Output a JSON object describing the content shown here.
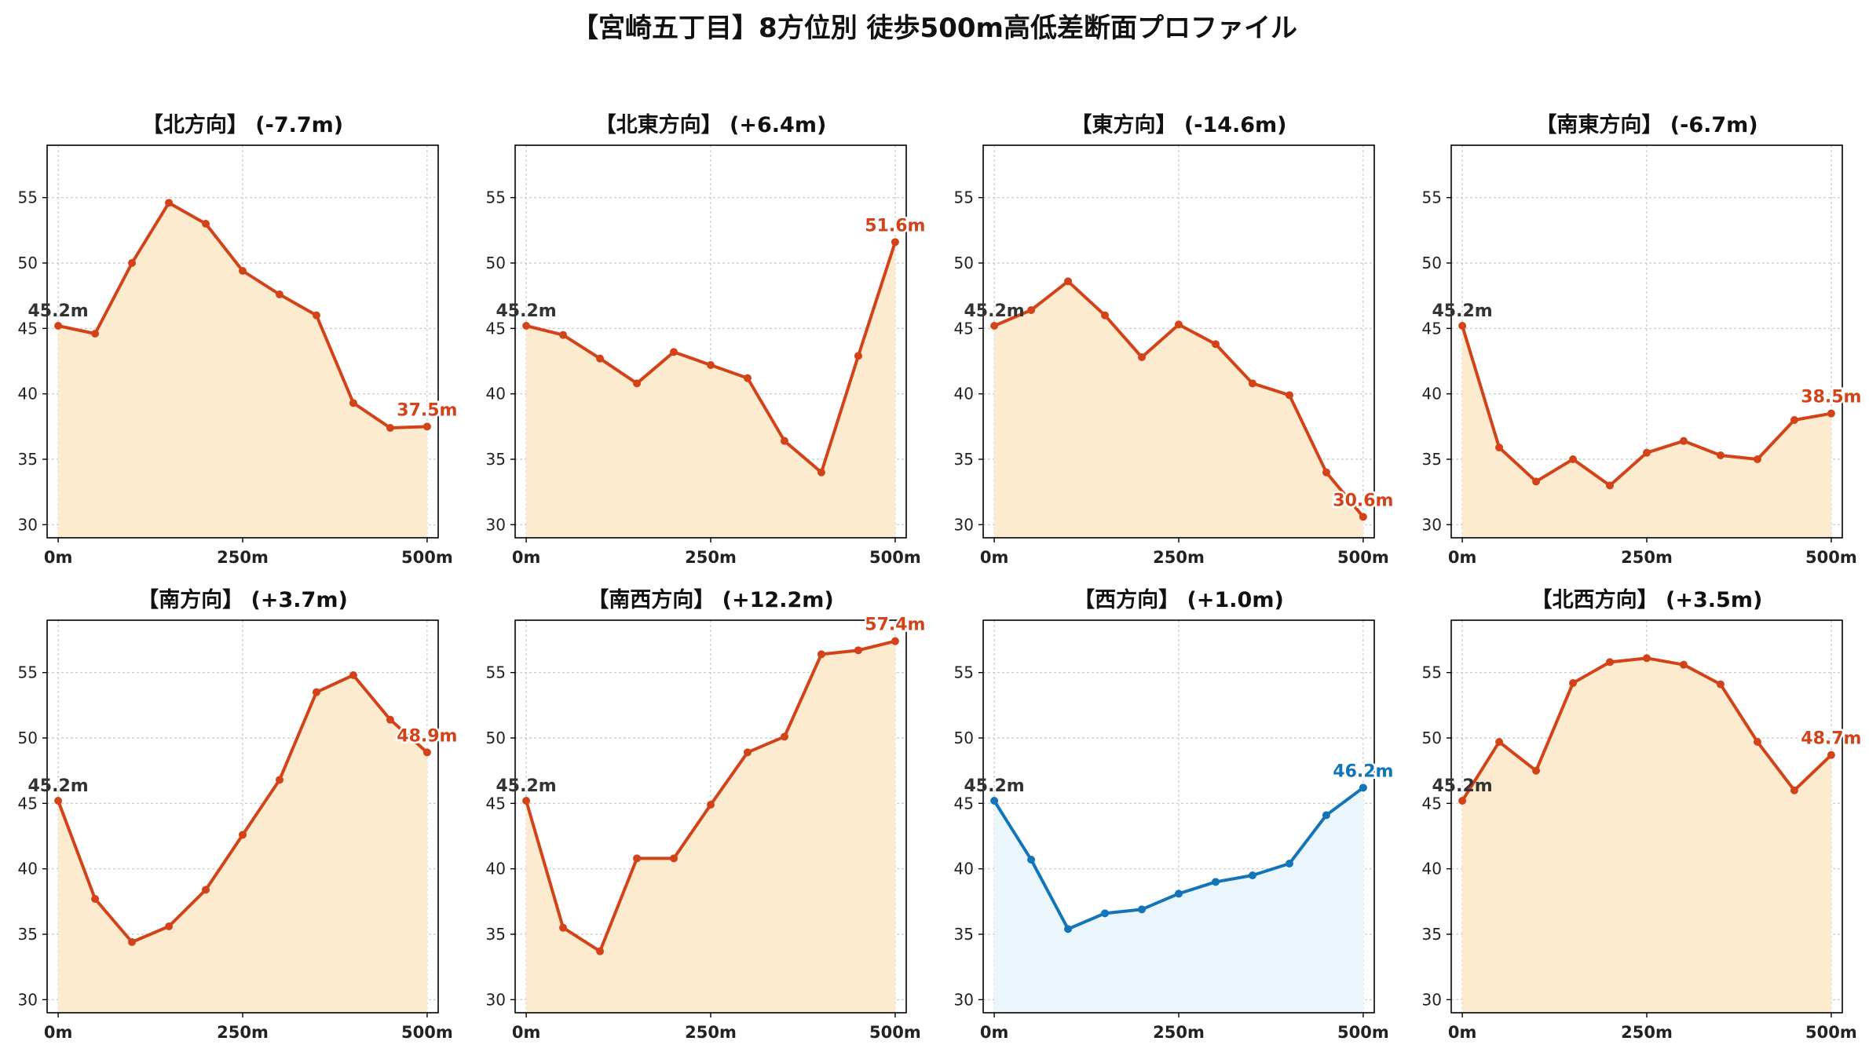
{
  "title": "【宮崎五丁目】8方位別 徒歩500m高低差断面プロファイル",
  "colors": {
    "up": "#d24319",
    "up_fill": "#fdebd0",
    "down": "#1375b8",
    "down_fill": "#eaf5fc",
    "start_label": "#333333",
    "grid": "#c8c8c8",
    "axis": "#000000"
  },
  "chart_data": [
    {
      "type": "line",
      "title": "【北方向】 (-7.7m)",
      "x": [
        0,
        50,
        100,
        150,
        200,
        250,
        300,
        350,
        400,
        450,
        500
      ],
      "values": [
        45.2,
        44.6,
        50.0,
        54.6,
        53.0,
        49.4,
        47.6,
        46.0,
        39.3,
        37.4,
        37.5
      ],
      "start_label": "45.2m",
      "end_label": "37.5m",
      "trend": "up",
      "xticks": [
        "0m",
        "250m",
        "500m"
      ],
      "yticks": [
        30,
        35,
        40,
        45,
        50,
        55
      ],
      "ylim": [
        29,
        59
      ],
      "xlim": [
        -15,
        515
      ],
      "grid": true
    },
    {
      "type": "line",
      "title": "【北東方向】 (+6.4m)",
      "x": [
        0,
        50,
        100,
        150,
        200,
        250,
        300,
        350,
        400,
        450,
        500
      ],
      "values": [
        45.2,
        44.5,
        42.7,
        40.8,
        43.2,
        42.2,
        41.2,
        36.4,
        34.0,
        42.9,
        51.6
      ],
      "start_label": "45.2m",
      "end_label": "51.6m",
      "trend": "up",
      "xticks": [
        "0m",
        "250m",
        "500m"
      ],
      "yticks": [
        30,
        35,
        40,
        45,
        50,
        55
      ],
      "ylim": [
        29,
        59
      ],
      "xlim": [
        -15,
        515
      ],
      "grid": true
    },
    {
      "type": "line",
      "title": "【東方向】 (-14.6m)",
      "x": [
        0,
        50,
        100,
        150,
        200,
        250,
        300,
        350,
        400,
        450,
        500
      ],
      "values": [
        45.2,
        46.4,
        48.6,
        46.0,
        42.8,
        45.3,
        43.8,
        40.8,
        39.9,
        34.0,
        30.6
      ],
      "start_label": "45.2m",
      "end_label": "30.6m",
      "trend": "up",
      "xticks": [
        "0m",
        "250m",
        "500m"
      ],
      "yticks": [
        30,
        35,
        40,
        45,
        50,
        55
      ],
      "ylim": [
        29,
        59
      ],
      "xlim": [
        -15,
        515
      ],
      "grid": true
    },
    {
      "type": "line",
      "title": "【南東方向】 (-6.7m)",
      "x": [
        0,
        50,
        100,
        150,
        200,
        250,
        300,
        350,
        400,
        450,
        500
      ],
      "values": [
        45.2,
        35.9,
        33.3,
        35.0,
        33.0,
        35.5,
        36.4,
        35.3,
        35.0,
        38.0,
        38.5
      ],
      "start_label": "45.2m",
      "end_label": "38.5m",
      "trend": "up",
      "xticks": [
        "0m",
        "250m",
        "500m"
      ],
      "yticks": [
        30,
        35,
        40,
        45,
        50,
        55
      ],
      "ylim": [
        29,
        59
      ],
      "xlim": [
        -15,
        515
      ],
      "grid": true
    },
    {
      "type": "line",
      "title": "【南方向】 (+3.7m)",
      "x": [
        0,
        50,
        100,
        150,
        200,
        250,
        300,
        350,
        400,
        450,
        500
      ],
      "values": [
        45.2,
        37.7,
        34.4,
        35.6,
        38.4,
        42.6,
        46.8,
        53.5,
        54.8,
        51.4,
        48.9
      ],
      "start_label": "45.2m",
      "end_label": "48.9m",
      "trend": "up",
      "xticks": [
        "0m",
        "250m",
        "500m"
      ],
      "yticks": [
        30,
        35,
        40,
        45,
        50,
        55
      ],
      "ylim": [
        29,
        59
      ],
      "xlim": [
        -15,
        515
      ],
      "grid": true
    },
    {
      "type": "line",
      "title": "【南西方向】 (+12.2m)",
      "x": [
        0,
        50,
        100,
        150,
        200,
        250,
        300,
        350,
        400,
        450,
        500
      ],
      "values": [
        45.2,
        35.5,
        33.7,
        40.8,
        40.8,
        44.9,
        48.9,
        50.1,
        56.4,
        56.7,
        57.4
      ],
      "start_label": "45.2m",
      "end_label": "57.4m",
      "trend": "up",
      "xticks": [
        "0m",
        "250m",
        "500m"
      ],
      "yticks": [
        30,
        35,
        40,
        45,
        50,
        55
      ],
      "ylim": [
        29,
        59
      ],
      "xlim": [
        -15,
        515
      ],
      "grid": true
    },
    {
      "type": "line",
      "title": "【西方向】 (+1.0m)",
      "x": [
        0,
        50,
        100,
        150,
        200,
        250,
        300,
        350,
        400,
        450,
        500
      ],
      "values": [
        45.2,
        40.7,
        35.4,
        36.6,
        36.9,
        38.1,
        39.0,
        39.5,
        40.4,
        44.1,
        46.2
      ],
      "start_label": "45.2m",
      "end_label": "46.2m",
      "trend": "down",
      "xticks": [
        "0m",
        "250m",
        "500m"
      ],
      "yticks": [
        30,
        35,
        40,
        45,
        50,
        55
      ],
      "ylim": [
        29,
        59
      ],
      "xlim": [
        -15,
        515
      ],
      "grid": true
    },
    {
      "type": "line",
      "title": "【北西方向】 (+3.5m)",
      "x": [
        0,
        50,
        100,
        150,
        200,
        250,
        300,
        350,
        400,
        450,
        500
      ],
      "values": [
        45.2,
        49.7,
        47.5,
        54.2,
        55.8,
        56.1,
        55.6,
        54.1,
        49.7,
        46.0,
        48.7
      ],
      "start_label": "45.2m",
      "end_label": "48.7m",
      "trend": "up",
      "xticks": [
        "0m",
        "250m",
        "500m"
      ],
      "yticks": [
        30,
        35,
        40,
        45,
        50,
        55
      ],
      "ylim": [
        29,
        59
      ],
      "xlim": [
        -15,
        515
      ],
      "grid": true
    }
  ]
}
